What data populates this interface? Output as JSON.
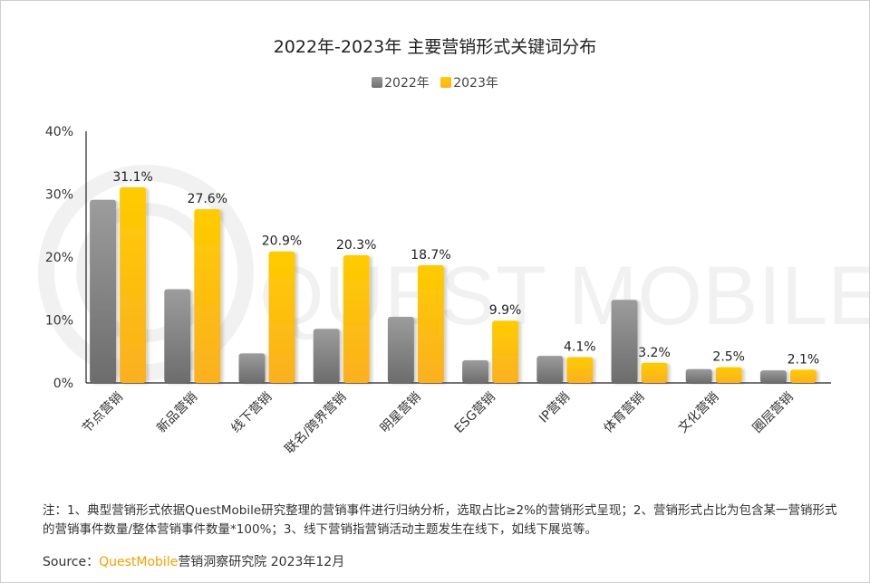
{
  "colors": {
    "2022": "#8a8a8a",
    "2023": "#ffc000",
    "brand": "#f5a000"
  },
  "watermark": "QUEST MOBILE",
  "note": "注：1、典型营销形式依据QuestMobile研究整理的营销事件进行归纳分析，选取占比≥2%的营销形式呈现；2、营销形式占比为包含某一营销形式的营销事件数量/整体营销事件数量*100%；3、线下营销指营销活动主题发生在线下，如线下展览等。",
  "source": {
    "label": "Source：",
    "brand": "QuestMobile",
    "rest": "营销洞察研究院 2023年12月"
  },
  "chart_data": {
    "type": "bar",
    "title": "2022年-2023年 主要营销形式关键词分布",
    "legend_position": "top",
    "categories": [
      "节点营销",
      "新品营销",
      "线下营销",
      "联名/跨界营销",
      "明星营销",
      "ESG营销",
      "IP营销",
      "体育营销",
      "文化营销",
      "圈层营销"
    ],
    "series": [
      {
        "name": "2022年",
        "values": [
          29.1,
          14.9,
          4.7,
          8.6,
          10.5,
          3.6,
          4.3,
          13.2,
          2.2,
          2.0
        ],
        "labels": []
      },
      {
        "name": "2023年",
        "values": [
          31.1,
          27.6,
          20.9,
          20.3,
          18.7,
          9.9,
          4.1,
          3.2,
          2.5,
          2.1
        ],
        "labels": [
          "31.1%",
          "27.6%",
          "20.9%",
          "20.3%",
          "18.7%",
          "9.9%",
          "4.1%",
          "3.2%",
          "2.5%",
          "2.1%"
        ]
      }
    ],
    "ylim": [
      0,
      40
    ],
    "yticks": [
      "0%",
      "10%",
      "20%",
      "30%",
      "40%"
    ],
    "grid": false
  }
}
